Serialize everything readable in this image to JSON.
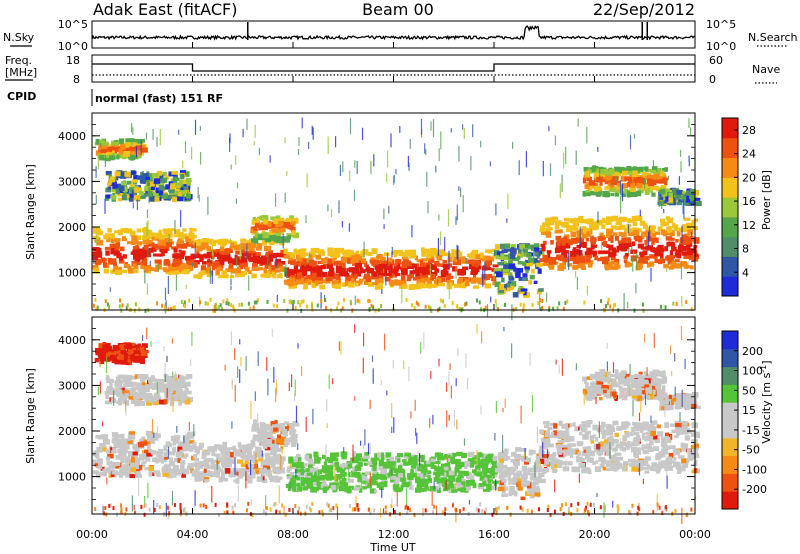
{
  "header": {
    "station": "Adak East (fitACF)",
    "beam": "Beam 00",
    "date": "22/Sep/2012"
  },
  "labels": {
    "nsky": "N.Sky",
    "nsearch": "N.Search",
    "freq_line1": "Freq.",
    "freq_line2": "[MHz]",
    "nave": "Nave",
    "cpid": "CPID",
    "cpid_value": "normal (fast) 151 RF"
  },
  "ticks": {
    "noise_left": [
      "10^5",
      "10^0"
    ],
    "noise_right": [
      "10^5",
      "10^0"
    ],
    "freq_left": [
      "18",
      "8"
    ],
    "freq_right": [
      "60",
      "0"
    ]
  },
  "colors": {
    "power_scale": [
      "#1f2bd6",
      "#2f57a6",
      "#4f8e68",
      "#55a64a",
      "#9bc83a",
      "#f2c21b",
      "#f58a14",
      "#ef5210",
      "#e01b0e"
    ],
    "velocity_scale": [
      "#e01b0e",
      "#ef5210",
      "#f58a14",
      "#f2b52a",
      "#c8c8c8",
      "#c8c8c8",
      "#55c439",
      "#4f8e68",
      "#2f57a6",
      "#1f2bd6"
    ]
  },
  "chart_data": [
    {
      "type": "heatmap",
      "panel": "power",
      "xlabel": "",
      "ylabel": "Slant Range [km]",
      "yticks": [
        "1000",
        "2000",
        "3000",
        "4000"
      ],
      "ylim": [
        180,
        4500
      ],
      "colorbar_label": "Power [dB]",
      "colorbar_ticks": [
        "4",
        "8",
        "12",
        "16",
        "20",
        "24",
        "28"
      ],
      "colorbar_range": [
        0,
        30
      ]
    },
    {
      "type": "heatmap",
      "panel": "velocity",
      "xlabel": "Time UT",
      "ylabel": "Slant Range [km]",
      "yticks": [
        "1000",
        "2000",
        "3000",
        "4000"
      ],
      "ylim": [
        180,
        4500
      ],
      "xticks": [
        "00:00",
        "04:00",
        "08:00",
        "12:00",
        "16:00",
        "20:00",
        "00:00"
      ],
      "colorbar_label_main": "Velocity [m s",
      "colorbar_label_sup": "-1",
      "colorbar_label_end": "]",
      "colorbar_ticks": [
        "-200",
        "-100",
        "-50",
        "-15",
        "15",
        "50",
        "100",
        "200"
      ],
      "colorbar_range": [
        -250,
        250
      ]
    }
  ]
}
